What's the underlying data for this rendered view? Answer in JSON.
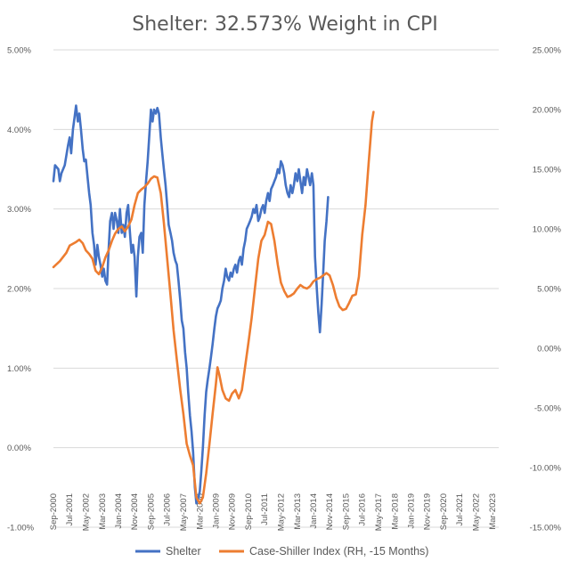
{
  "chart_data": {
    "type": "line",
    "title": "Shelter: 32.573% Weight in CPI",
    "y_left": {
      "min": -1.0,
      "max": 5.0,
      "step": 1.0,
      "tick_labels": [
        "-1.00%",
        "0.00%",
        "1.00%",
        "2.00%",
        "3.00%",
        "4.00%",
        "5.00%"
      ]
    },
    "y_right": {
      "min": -15.0,
      "max": 25.0,
      "step": 5.0,
      "tick_labels": [
        "-15.00%",
        "-10.00%",
        "-5.00%",
        "0.00%",
        "5.00%",
        "10.00%",
        "15.00%",
        "20.00%",
        "25.00%"
      ]
    },
    "x_range": [
      2000.67,
      2023.5
    ],
    "x_tick_labels": [
      {
        "t": 2000.67,
        "label": "Sep-2000"
      },
      {
        "t": 2001.5,
        "label": "Jul-2001"
      },
      {
        "t": 2002.33,
        "label": "May-2002"
      },
      {
        "t": 2003.17,
        "label": "Mar-2003"
      },
      {
        "t": 2004.0,
        "label": "Jan-2004"
      },
      {
        "t": 2004.83,
        "label": "Nov-2004"
      },
      {
        "t": 2005.67,
        "label": "Sep-2005"
      },
      {
        "t": 2006.5,
        "label": "Jul-2006"
      },
      {
        "t": 2007.33,
        "label": "May-2007"
      },
      {
        "t": 2008.17,
        "label": "Mar-2008"
      },
      {
        "t": 2009.0,
        "label": "Jan-2009"
      },
      {
        "t": 2009.83,
        "label": "Nov-2009"
      },
      {
        "t": 2010.67,
        "label": "Sep-2010"
      },
      {
        "t": 2011.5,
        "label": "Jul-2011"
      },
      {
        "t": 2012.33,
        "label": "May-2012"
      },
      {
        "t": 2013.17,
        "label": "Mar-2013"
      },
      {
        "t": 2014.0,
        "label": "Jan-2014"
      },
      {
        "t": 2014.83,
        "label": "Nov-2014"
      },
      {
        "t": 2015.67,
        "label": "Sep-2015"
      },
      {
        "t": 2016.5,
        "label": "Jul-2016"
      },
      {
        "t": 2017.33,
        "label": "May-2017"
      },
      {
        "t": 2018.17,
        "label": "Mar-2018"
      },
      {
        "t": 2019.0,
        "label": "Jan-2019"
      },
      {
        "t": 2019.83,
        "label": "Nov-2019"
      },
      {
        "t": 2020.67,
        "label": "Sep-2020"
      },
      {
        "t": 2021.5,
        "label": "Jul-2021"
      },
      {
        "t": 2022.33,
        "label": "May-2022"
      },
      {
        "t": 2023.17,
        "label": "Mar-2023"
      }
    ],
    "grid": "horizontal",
    "legend_position": "bottom",
    "series": [
      {
        "name": "Shelter",
        "axis": "left",
        "color": "#4472c4",
        "points": [
          [
            2000.67,
            3.35
          ],
          [
            2000.75,
            3.55
          ],
          [
            2000.92,
            3.5
          ],
          [
            2001.0,
            3.35
          ],
          [
            2001.08,
            3.45
          ],
          [
            2001.25,
            3.55
          ],
          [
            2001.42,
            3.8
          ],
          [
            2001.5,
            3.9
          ],
          [
            2001.58,
            3.7
          ],
          [
            2001.67,
            4.0
          ],
          [
            2001.75,
            4.15
          ],
          [
            2001.83,
            4.3
          ],
          [
            2001.92,
            4.1
          ],
          [
            2002.0,
            4.2
          ],
          [
            2002.08,
            4.0
          ],
          [
            2002.17,
            3.75
          ],
          [
            2002.25,
            3.6
          ],
          [
            2002.33,
            3.62
          ],
          [
            2002.42,
            3.4
          ],
          [
            2002.5,
            3.2
          ],
          [
            2002.58,
            3.05
          ],
          [
            2002.67,
            2.7
          ],
          [
            2002.75,
            2.55
          ],
          [
            2002.83,
            2.3
          ],
          [
            2002.92,
            2.55
          ],
          [
            2003.0,
            2.4
          ],
          [
            2003.08,
            2.3
          ],
          [
            2003.17,
            2.15
          ],
          [
            2003.25,
            2.25
          ],
          [
            2003.33,
            2.1
          ],
          [
            2003.42,
            2.05
          ],
          [
            2003.5,
            2.5
          ],
          [
            2003.58,
            2.85
          ],
          [
            2003.67,
            2.95
          ],
          [
            2003.75,
            2.75
          ],
          [
            2003.83,
            2.95
          ],
          [
            2003.92,
            2.85
          ],
          [
            2004.0,
            2.7
          ],
          [
            2004.08,
            3.0
          ],
          [
            2004.17,
            2.7
          ],
          [
            2004.25,
            2.8
          ],
          [
            2004.33,
            2.65
          ],
          [
            2004.42,
            2.95
          ],
          [
            2004.5,
            3.05
          ],
          [
            2004.58,
            2.75
          ],
          [
            2004.67,
            2.45
          ],
          [
            2004.75,
            2.55
          ],
          [
            2004.83,
            2.4
          ],
          [
            2004.92,
            1.9
          ],
          [
            2005.0,
            2.4
          ],
          [
            2005.08,
            2.65
          ],
          [
            2005.17,
            2.7
          ],
          [
            2005.25,
            2.45
          ],
          [
            2005.33,
            3.05
          ],
          [
            2005.42,
            3.35
          ],
          [
            2005.5,
            3.6
          ],
          [
            2005.58,
            3.9
          ],
          [
            2005.67,
            4.25
          ],
          [
            2005.75,
            4.1
          ],
          [
            2005.83,
            4.25
          ],
          [
            2005.92,
            4.2
          ],
          [
            2006.0,
            4.27
          ],
          [
            2006.08,
            4.2
          ],
          [
            2006.17,
            3.9
          ],
          [
            2006.25,
            3.7
          ],
          [
            2006.33,
            3.5
          ],
          [
            2006.42,
            3.3
          ],
          [
            2006.5,
            3.05
          ],
          [
            2006.58,
            2.8
          ],
          [
            2006.67,
            2.7
          ],
          [
            2006.75,
            2.6
          ],
          [
            2006.83,
            2.45
          ],
          [
            2006.92,
            2.35
          ],
          [
            2007.0,
            2.3
          ],
          [
            2007.08,
            2.1
          ],
          [
            2007.17,
            1.85
          ],
          [
            2007.25,
            1.6
          ],
          [
            2007.33,
            1.5
          ],
          [
            2007.42,
            1.2
          ],
          [
            2007.5,
            1.0
          ],
          [
            2007.58,
            0.7
          ],
          [
            2007.67,
            0.4
          ],
          [
            2007.75,
            0.2
          ],
          [
            2007.83,
            -0.05
          ],
          [
            2007.92,
            -0.5
          ],
          [
            2008.0,
            -0.7
          ],
          [
            2008.08,
            -0.65
          ],
          [
            2008.17,
            -0.55
          ],
          [
            2008.25,
            -0.3
          ],
          [
            2008.33,
            0.0
          ],
          [
            2008.42,
            0.4
          ],
          [
            2008.5,
            0.7
          ],
          [
            2008.58,
            0.85
          ],
          [
            2008.67,
            1.0
          ],
          [
            2008.75,
            1.15
          ],
          [
            2008.83,
            1.3
          ],
          [
            2008.92,
            1.5
          ],
          [
            2009.0,
            1.65
          ],
          [
            2009.08,
            1.75
          ],
          [
            2009.17,
            1.8
          ],
          [
            2009.25,
            1.85
          ],
          [
            2009.33,
            2.0
          ],
          [
            2009.42,
            2.1
          ],
          [
            2009.5,
            2.25
          ],
          [
            2009.58,
            2.15
          ],
          [
            2009.67,
            2.1
          ],
          [
            2009.75,
            2.2
          ],
          [
            2009.83,
            2.15
          ],
          [
            2009.92,
            2.25
          ],
          [
            2010.0,
            2.3
          ],
          [
            2010.08,
            2.2
          ],
          [
            2010.17,
            2.35
          ],
          [
            2010.25,
            2.4
          ],
          [
            2010.33,
            2.3
          ],
          [
            2010.42,
            2.5
          ],
          [
            2010.5,
            2.6
          ],
          [
            2010.58,
            2.75
          ],
          [
            2010.67,
            2.8
          ],
          [
            2010.75,
            2.85
          ],
          [
            2010.83,
            2.9
          ],
          [
            2010.92,
            3.0
          ],
          [
            2011.0,
            2.95
          ],
          [
            2011.08,
            3.05
          ],
          [
            2011.17,
            2.85
          ],
          [
            2011.25,
            2.9
          ],
          [
            2011.33,
            3.0
          ],
          [
            2011.42,
            3.05
          ],
          [
            2011.5,
            2.95
          ],
          [
            2011.58,
            3.1
          ],
          [
            2011.67,
            3.2
          ],
          [
            2011.75,
            3.1
          ],
          [
            2011.83,
            3.25
          ],
          [
            2011.92,
            3.3
          ],
          [
            2012.0,
            3.35
          ],
          [
            2012.08,
            3.4
          ],
          [
            2012.17,
            3.5
          ],
          [
            2012.25,
            3.45
          ],
          [
            2012.33,
            3.6
          ],
          [
            2012.42,
            3.55
          ],
          [
            2012.5,
            3.45
          ],
          [
            2012.58,
            3.3
          ],
          [
            2012.67,
            3.2
          ],
          [
            2012.75,
            3.15
          ],
          [
            2012.83,
            3.3
          ],
          [
            2012.92,
            3.2
          ],
          [
            2013.0,
            3.3
          ],
          [
            2013.08,
            3.45
          ],
          [
            2013.17,
            3.35
          ],
          [
            2013.25,
            3.5
          ],
          [
            2013.33,
            3.35
          ],
          [
            2013.42,
            3.2
          ],
          [
            2013.5,
            3.4
          ],
          [
            2013.58,
            3.3
          ],
          [
            2013.67,
            3.5
          ],
          [
            2013.75,
            3.4
          ],
          [
            2013.83,
            3.3
          ],
          [
            2013.92,
            3.45
          ],
          [
            2014.0,
            3.3
          ],
          [
            2014.08,
            2.4
          ],
          [
            2014.17,
            2.0
          ],
          [
            2014.25,
            1.7
          ],
          [
            2014.33,
            1.45
          ],
          [
            2014.42,
            1.8
          ],
          [
            2014.5,
            2.2
          ],
          [
            2014.58,
            2.6
          ],
          [
            2014.67,
            2.85
          ],
          [
            2014.75,
            3.15
          ]
        ]
      },
      {
        "name": "Case-Shiller Index (RH, -15 Months)",
        "axis": "right",
        "color": "#ed7d31",
        "points": [
          [
            2000.67,
            6.8
          ],
          [
            2001.0,
            7.3
          ],
          [
            2001.33,
            8.0
          ],
          [
            2001.5,
            8.6
          ],
          [
            2001.83,
            8.9
          ],
          [
            2002.0,
            9.1
          ],
          [
            2002.17,
            8.8
          ],
          [
            2002.33,
            8.2
          ],
          [
            2002.5,
            7.9
          ],
          [
            2002.67,
            7.5
          ],
          [
            2002.83,
            6.5
          ],
          [
            2003.0,
            6.2
          ],
          [
            2003.17,
            6.8
          ],
          [
            2003.33,
            7.6
          ],
          [
            2003.5,
            8.2
          ],
          [
            2003.67,
            9.0
          ],
          [
            2003.83,
            9.6
          ],
          [
            2004.0,
            10.0
          ],
          [
            2004.17,
            10.2
          ],
          [
            2004.33,
            9.8
          ],
          [
            2004.5,
            10.2
          ],
          [
            2004.67,
            10.8
          ],
          [
            2004.83,
            12.0
          ],
          [
            2005.0,
            13.0
          ],
          [
            2005.17,
            13.3
          ],
          [
            2005.33,
            13.5
          ],
          [
            2005.5,
            13.8
          ],
          [
            2005.67,
            14.2
          ],
          [
            2005.83,
            14.4
          ],
          [
            2006.0,
            14.3
          ],
          [
            2006.17,
            13.0
          ],
          [
            2006.33,
            10.5
          ],
          [
            2006.5,
            7.5
          ],
          [
            2006.67,
            4.5
          ],
          [
            2006.83,
            1.5
          ],
          [
            2007.0,
            -1.0
          ],
          [
            2007.17,
            -3.5
          ],
          [
            2007.33,
            -5.5
          ],
          [
            2007.5,
            -8.0
          ],
          [
            2007.67,
            -9.0
          ],
          [
            2007.83,
            -9.8
          ],
          [
            2008.0,
            -12.5
          ],
          [
            2008.17,
            -13.0
          ],
          [
            2008.33,
            -12.5
          ],
          [
            2008.5,
            -10.5
          ],
          [
            2008.67,
            -8.0
          ],
          [
            2008.83,
            -5.5
          ],
          [
            2009.0,
            -3.0
          ],
          [
            2009.08,
            -1.6
          ],
          [
            2009.17,
            -2.2
          ],
          [
            2009.33,
            -3.5
          ],
          [
            2009.5,
            -4.2
          ],
          [
            2009.67,
            -4.4
          ],
          [
            2009.83,
            -3.8
          ],
          [
            2010.0,
            -3.5
          ],
          [
            2010.17,
            -4.2
          ],
          [
            2010.33,
            -3.5
          ],
          [
            2010.5,
            -1.5
          ],
          [
            2010.67,
            0.5
          ],
          [
            2010.83,
            2.5
          ],
          [
            2011.0,
            5.0
          ],
          [
            2011.17,
            7.5
          ],
          [
            2011.33,
            9.0
          ],
          [
            2011.5,
            9.5
          ],
          [
            2011.67,
            10.6
          ],
          [
            2011.83,
            10.4
          ],
          [
            2012.0,
            9.0
          ],
          [
            2012.17,
            7.0
          ],
          [
            2012.33,
            5.5
          ],
          [
            2012.5,
            4.8
          ],
          [
            2012.67,
            4.3
          ],
          [
            2012.83,
            4.4
          ],
          [
            2013.0,
            4.6
          ],
          [
            2013.17,
            5.0
          ],
          [
            2013.33,
            5.3
          ],
          [
            2013.5,
            5.1
          ],
          [
            2013.67,
            5.0
          ],
          [
            2013.83,
            5.2
          ],
          [
            2014.0,
            5.6
          ],
          [
            2014.17,
            5.8
          ],
          [
            2014.33,
            5.9
          ],
          [
            2014.5,
            6.1
          ],
          [
            2014.67,
            6.3
          ],
          [
            2014.83,
            6.1
          ],
          [
            2015.0,
            5.3
          ],
          [
            2015.17,
            4.2
          ],
          [
            2015.33,
            3.5
          ],
          [
            2015.5,
            3.2
          ],
          [
            2015.67,
            3.3
          ],
          [
            2015.83,
            3.8
          ],
          [
            2016.0,
            4.4
          ],
          [
            2016.17,
            4.5
          ],
          [
            2016.33,
            6.0
          ],
          [
            2016.5,
            9.5
          ],
          [
            2016.67,
            12.0
          ],
          [
            2016.83,
            15.5
          ],
          [
            2017.0,
            19.0
          ],
          [
            2017.08,
            19.8
          ]
        ]
      }
    ]
  },
  "legend": {
    "items": [
      {
        "label": "Shelter",
        "color": "#4472c4"
      },
      {
        "label": "Case-Shiller Index (RH, -15 Months)",
        "color": "#ed7d31"
      }
    ]
  }
}
